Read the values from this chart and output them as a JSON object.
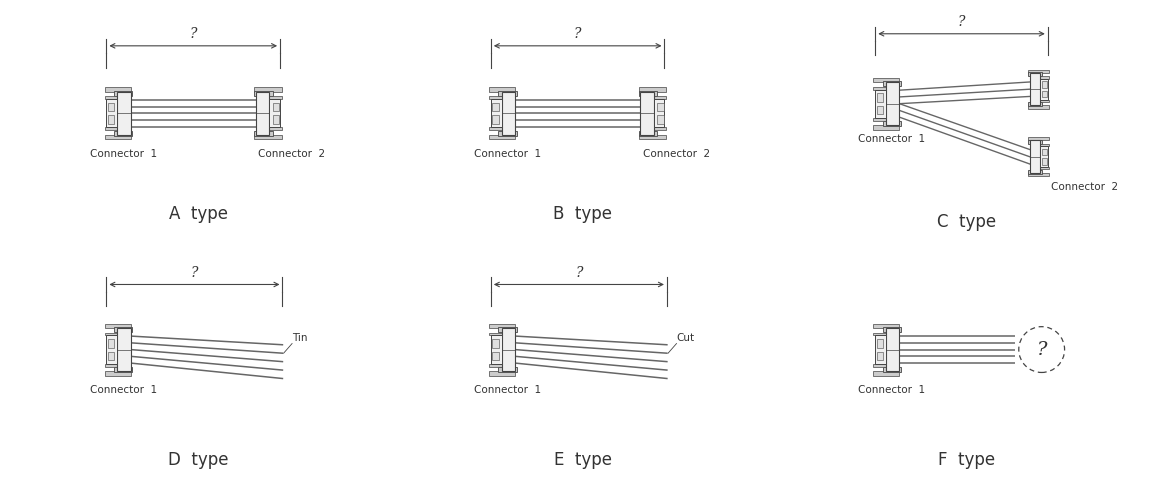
{
  "bg_color": "#ffffff",
  "line_color": "#444444",
  "cable_color": "#666666",
  "text_color": "#333333",
  "connector_face": "#f0f0f0",
  "connector_dark": "#cccccc",
  "panels": [
    {
      "label": "A  type",
      "col": 0,
      "row": 0,
      "conn1_label": "Connector  1",
      "conn2_label": "Connector  2",
      "type": "A"
    },
    {
      "label": "B  type",
      "col": 1,
      "row": 0,
      "conn1_label": "Connector  1",
      "conn2_label": "Connector  2",
      "type": "B"
    },
    {
      "label": "C  type",
      "col": 2,
      "row": 0,
      "conn1_label": "Connector  1",
      "conn2_label": "Connector  2",
      "type": "C"
    },
    {
      "label": "D  type",
      "col": 0,
      "row": 1,
      "conn1_label": "Connector  1",
      "conn2_label": "Tin",
      "type": "D"
    },
    {
      "label": "E  type",
      "col": 1,
      "row": 1,
      "conn1_label": "Connector  1",
      "conn2_label": "Cut",
      "type": "E"
    },
    {
      "label": "F  type",
      "col": 2,
      "row": 1,
      "conn1_label": "Connector  1",
      "conn2_label": "",
      "type": "F"
    }
  ]
}
